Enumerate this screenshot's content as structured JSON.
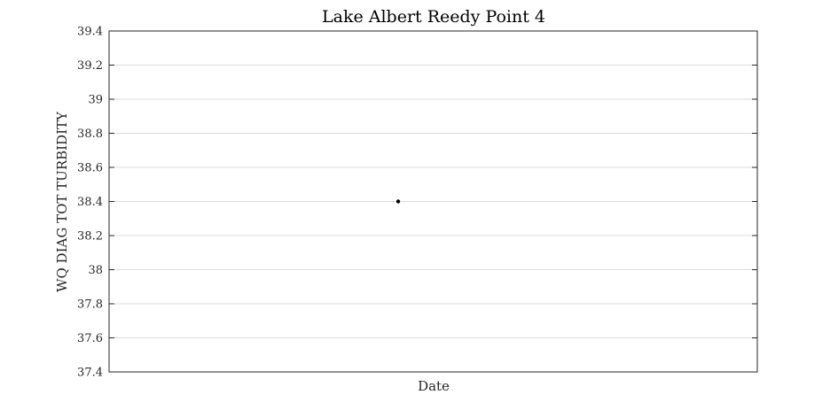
{
  "chart_data": {
    "type": "scatter",
    "title": "Lake Albert Reedy Point 4",
    "xlabel": "Date",
    "ylabel": "WQ DIAG TOT TURBIDITY",
    "ylim": [
      37.4,
      39.4
    ],
    "yticks": [
      37.4,
      37.6,
      37.8,
      38,
      38.2,
      38.4,
      38.6,
      38.8,
      39,
      39.2,
      39.4
    ],
    "ytick_labels": [
      "37.4",
      "37.6",
      "37.8",
      "38",
      "38.2",
      "38.4",
      "38.6",
      "38.8",
      "39",
      "39.2",
      "39.4"
    ],
    "xlim": [
      0,
      1
    ],
    "grid": true,
    "series": [
      {
        "points": [
          {
            "x": 0.446,
            "y": 38.4
          }
        ]
      }
    ],
    "colors": {
      "point": "#000000",
      "grid": "#dcdcdc",
      "axes": "#262626"
    }
  }
}
